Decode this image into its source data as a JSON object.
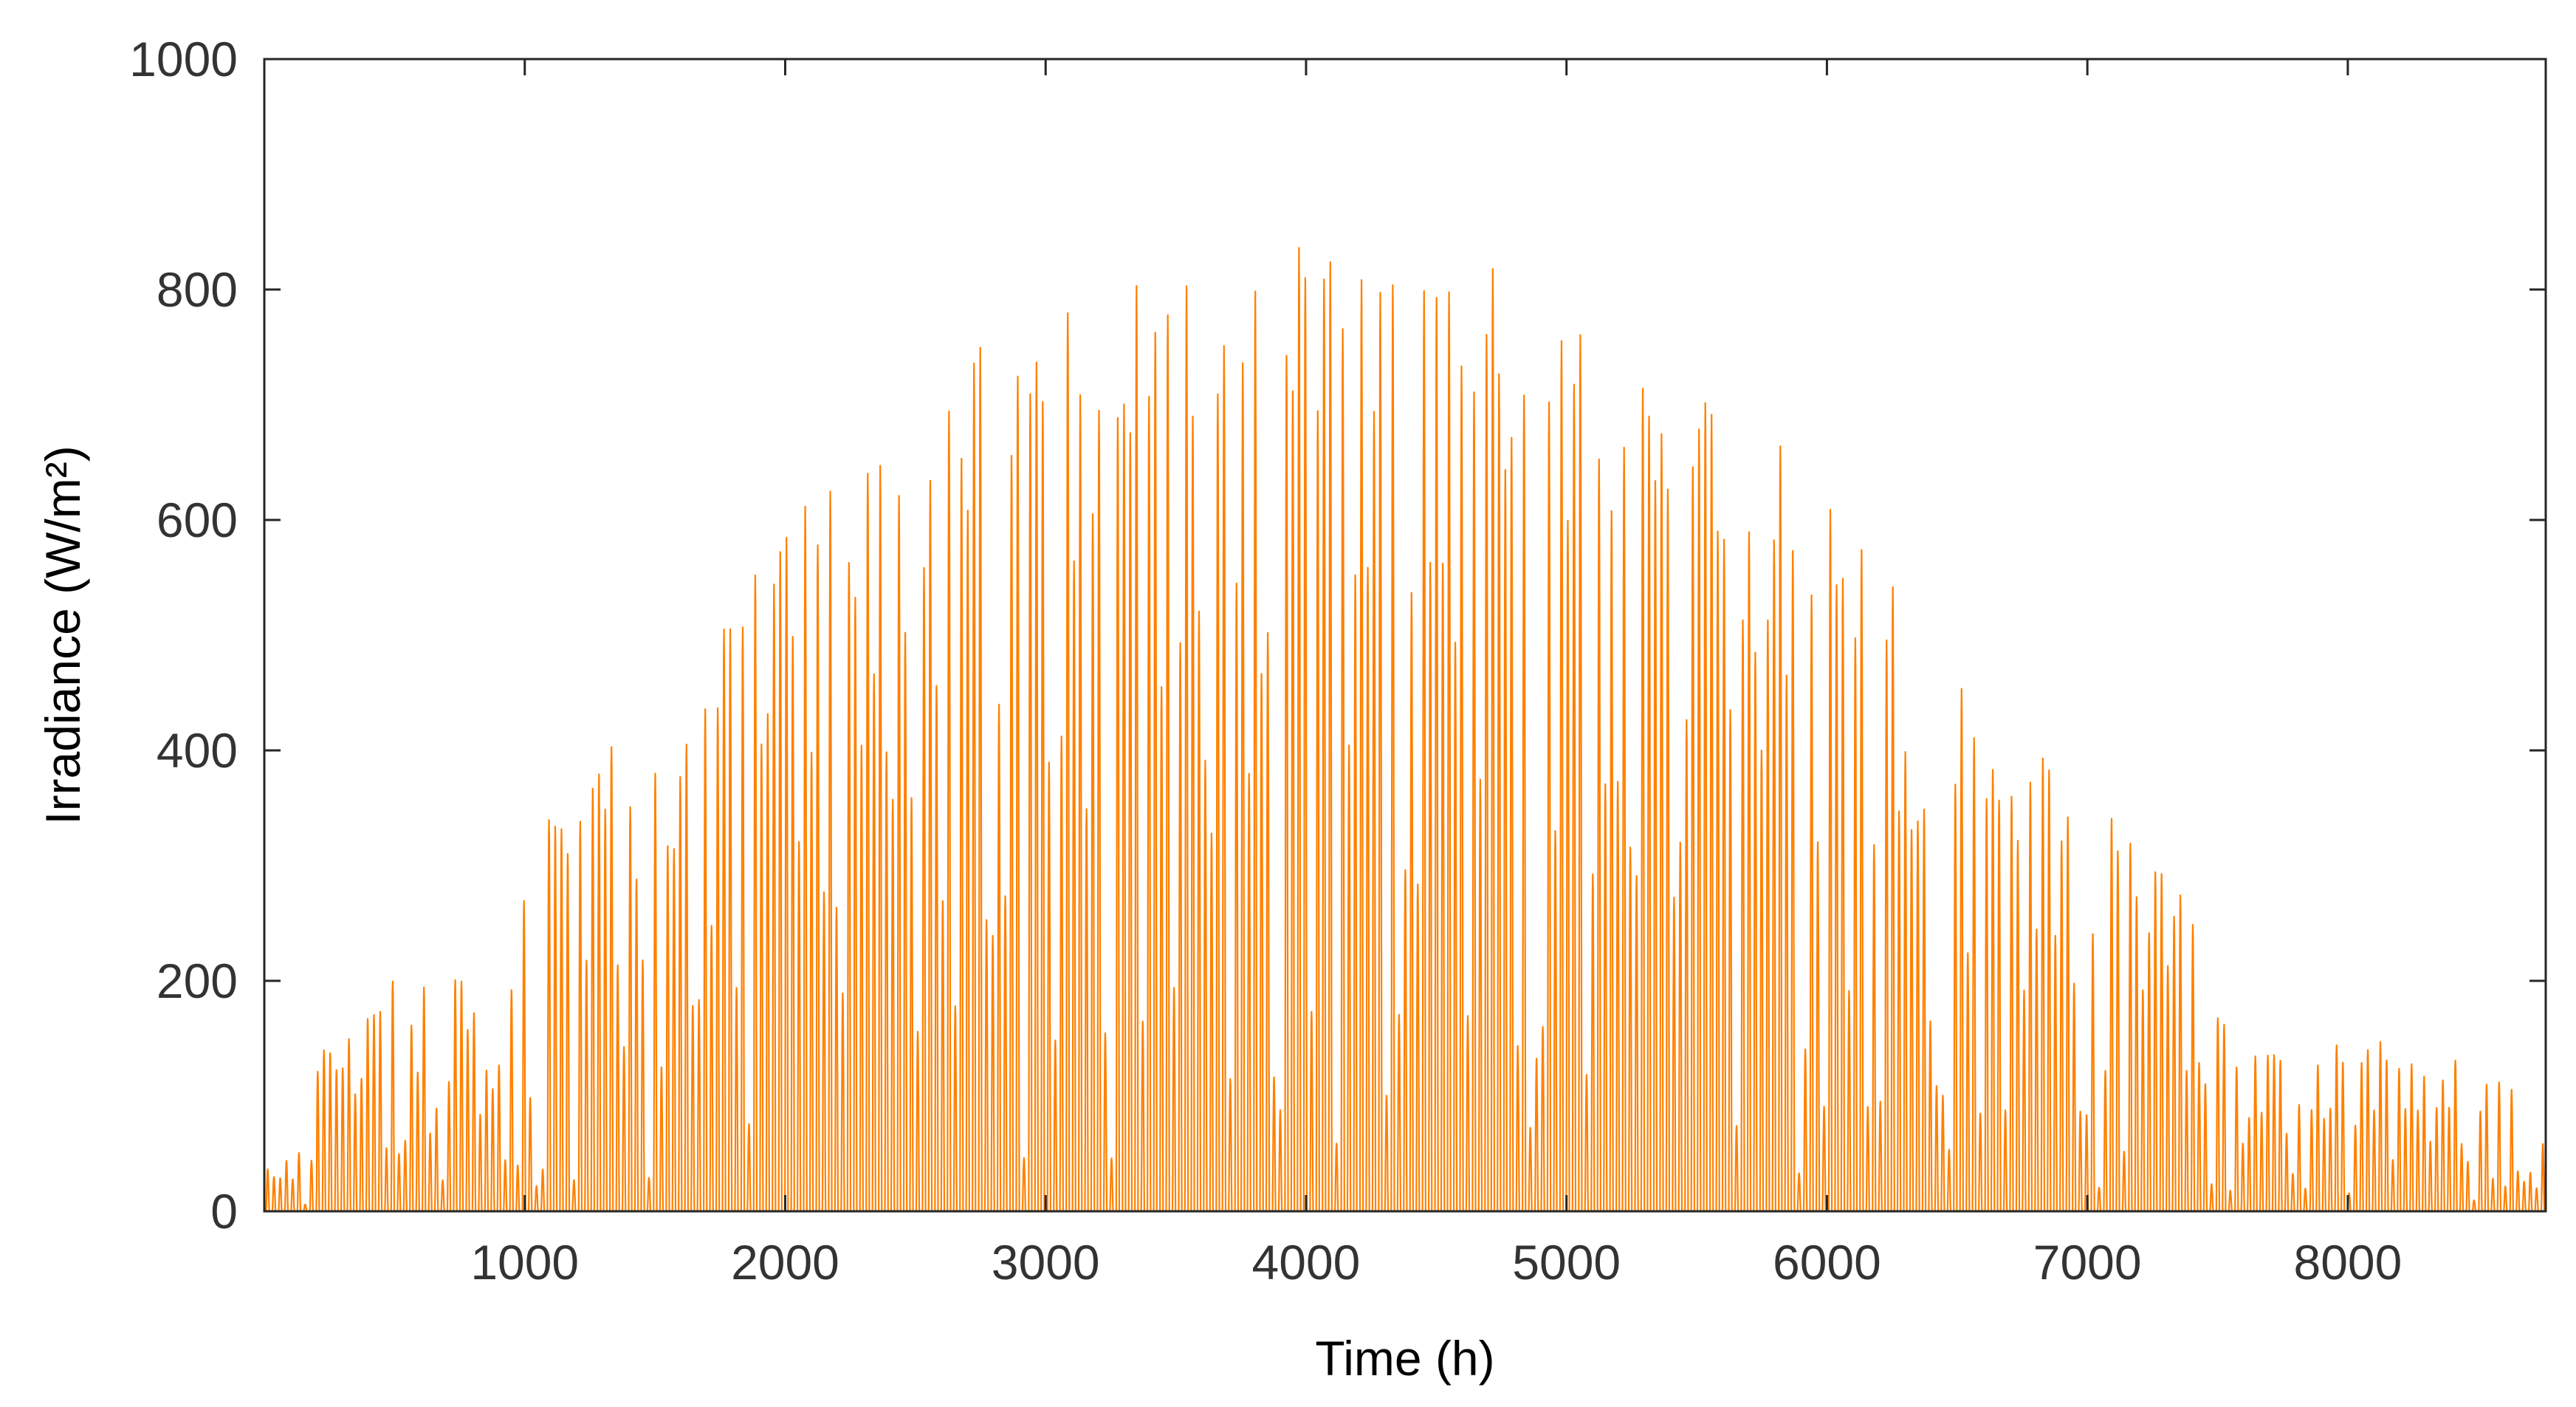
{
  "chart_data": {
    "type": "line",
    "xlabel": "Time (h)",
    "ylabel": "Irradiance (W/m²)",
    "xlim": [
      0,
      8760
    ],
    "ylim": [
      0,
      1000
    ],
    "xticks": [
      1000,
      2000,
      3000,
      4000,
      5000,
      6000,
      7000,
      8000
    ],
    "yticks": [
      0,
      200,
      400,
      600,
      800,
      1000
    ],
    "grid": false,
    "legend": "none",
    "series_color": "#ff8000",
    "envelope_peaks": [
      {
        "t": 50,
        "v": 45
      },
      {
        "t": 200,
        "v": 65
      },
      {
        "t": 200,
        "v": 148
      },
      {
        "t": 320,
        "v": 185
      },
      {
        "t": 580,
        "v": 230
      },
      {
        "t": 690,
        "v": 258
      },
      {
        "t": 900,
        "v": 145
      },
      {
        "t": 1000,
        "v": 320
      },
      {
        "t": 1130,
        "v": 350
      },
      {
        "t": 1270,
        "v": 390
      },
      {
        "t": 1300,
        "v": 420
      },
      {
        "t": 1510,
        "v": 445
      },
      {
        "t": 1720,
        "v": 445
      },
      {
        "t": 1750,
        "v": 500
      },
      {
        "t": 1980,
        "v": 600
      },
      {
        "t": 2170,
        "v": 630
      },
      {
        "t": 2380,
        "v": 670
      },
      {
        "t": 2450,
        "v": 700
      },
      {
        "t": 2650,
        "v": 720
      },
      {
        "t": 2800,
        "v": 785
      },
      {
        "t": 2950,
        "v": 795
      },
      {
        "t": 3270,
        "v": 815
      },
      {
        "t": 3450,
        "v": 830
      },
      {
        "t": 3700,
        "v": 850
      },
      {
        "t": 4110,
        "v": 852
      },
      {
        "t": 4380,
        "v": 835
      },
      {
        "t": 4800,
        "v": 815
      },
      {
        "t": 5150,
        "v": 765
      },
      {
        "t": 5350,
        "v": 740
      },
      {
        "t": 5550,
        "v": 700
      },
      {
        "t": 5800,
        "v": 675
      },
      {
        "t": 6000,
        "v": 615
      },
      {
        "t": 6300,
        "v": 550
      },
      {
        "t": 6500,
        "v": 475
      },
      {
        "t": 6700,
        "v": 380
      },
      {
        "t": 6850,
        "v": 412
      },
      {
        "t": 6950,
        "v": 380
      },
      {
        "t": 7150,
        "v": 330
      },
      {
        "t": 7400,
        "v": 280
      },
      {
        "t": 7550,
        "v": 150
      },
      {
        "t": 8030,
        "v": 155
      },
      {
        "t": 8370,
        "v": 135
      },
      {
        "t": 8700,
        "v": 110
      },
      {
        "t": 8760,
        "v": 60
      }
    ]
  }
}
